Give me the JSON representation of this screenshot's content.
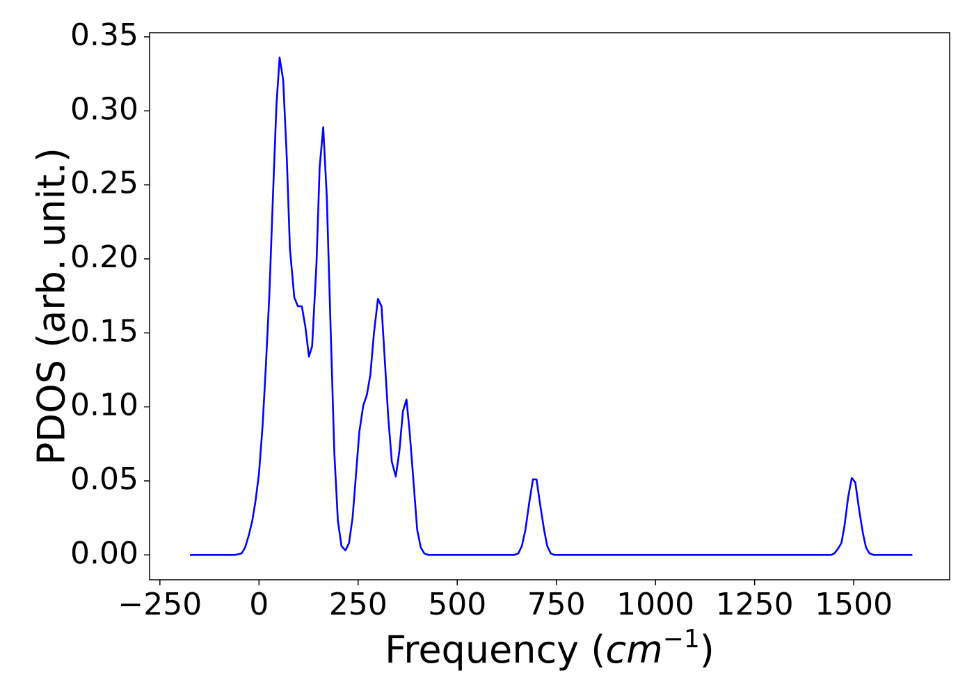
{
  "chart_data": {
    "type": "line",
    "xlabel": [
      "Frequency (",
      "cm",
      "−1",
      ")"
    ],
    "ylabel": "PDOS (arb. unit.)",
    "x": [
      -174,
      -60,
      -44,
      -35,
      -26,
      -17,
      -9,
      0,
      9,
      17,
      26,
      35,
      44,
      52,
      61,
      70,
      78,
      89,
      98,
      108,
      117,
      126,
      134,
      145,
      153,
      162,
      171,
      180,
      190,
      199,
      208,
      218,
      227,
      236,
      244,
      253,
      263,
      272,
      281,
      290,
      300,
      309,
      317,
      326,
      335,
      345,
      354,
      363,
      372,
      380,
      391,
      399,
      408,
      417,
      427,
      644,
      654,
      663,
      672,
      682,
      691,
      700,
      708,
      719,
      727,
      736,
      745,
      1443,
      1451,
      1460,
      1469,
      1477,
      1486,
      1495,
      1504,
      1514,
      1523,
      1531,
      1540,
      1550,
      1648
    ],
    "series": [
      {
        "name": "PDOS",
        "color": "#0000ff",
        "values": [
          0,
          0,
          0.001,
          0.005,
          0.013,
          0.023,
          0.036,
          0.055,
          0.087,
          0.126,
          0.175,
          0.241,
          0.304,
          0.336,
          0.321,
          0.269,
          0.207,
          0.174,
          0.168,
          0.168,
          0.154,
          0.134,
          0.141,
          0.197,
          0.262,
          0.289,
          0.242,
          0.159,
          0.069,
          0.023,
          0.006,
          0.003,
          0.008,
          0.025,
          0.052,
          0.083,
          0.101,
          0.108,
          0.122,
          0.15,
          0.173,
          0.168,
          0.133,
          0.093,
          0.063,
          0.053,
          0.07,
          0.097,
          0.105,
          0.083,
          0.045,
          0.017,
          0.005,
          0.001,
          0,
          0,
          0.001,
          0.006,
          0.017,
          0.036,
          0.051,
          0.051,
          0.036,
          0.017,
          0.006,
          0.001,
          0,
          0,
          0.001,
          0.004,
          0.008,
          0.02,
          0.039,
          0.052,
          0.049,
          0.03,
          0.015,
          0.005,
          0.001,
          0,
          0
        ]
      }
    ],
    "xlim": [
      -276,
      1742
    ],
    "ylim": [
      -0.0168,
      0.3528
    ],
    "xticks": [
      {
        "value": -250,
        "label": "−250"
      },
      0,
      250,
      500,
      750,
      1000,
      1250,
      1500
    ],
    "yticks": [
      {
        "value": 0,
        "label": "0.00"
      },
      {
        "value": 0.05,
        "label": "0.05"
      },
      {
        "value": 0.1,
        "label": "0.10"
      },
      {
        "value": 0.15,
        "label": "0.15"
      },
      {
        "value": 0.2,
        "label": "0.20"
      },
      {
        "value": 0.25,
        "label": "0.25"
      },
      {
        "value": 0.3,
        "label": "0.30"
      },
      {
        "value": 0.35,
        "label": "0.35"
      }
    ],
    "grid": false
  }
}
